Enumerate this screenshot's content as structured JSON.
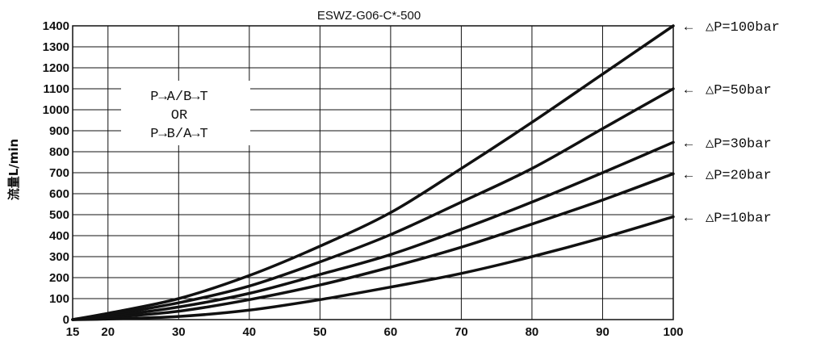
{
  "chart_data": {
    "type": "line",
    "title": "ESWZ-G06-C*-500",
    "xlabel": "",
    "ylabel": "流量L/min",
    "xlim": [
      15,
      100
    ],
    "ylim": [
      0,
      1400
    ],
    "x_ticks": [
      15,
      20,
      30,
      40,
      50,
      60,
      70,
      80,
      90,
      100
    ],
    "y_ticks": [
      0,
      100,
      200,
      300,
      400,
      500,
      600,
      700,
      800,
      900,
      1000,
      1100,
      1200,
      1300,
      1400
    ],
    "grid": true,
    "annotation": [
      "P→A/B→T",
      "OR",
      "P→B/A→T"
    ],
    "series": [
      {
        "name": "△P=100bar",
        "x": [
          15,
          20,
          30,
          40,
          50,
          60,
          70,
          80,
          90,
          100
        ],
        "y": [
          0,
          30,
          100,
          210,
          350,
          510,
          720,
          940,
          1170,
          1400
        ]
      },
      {
        "name": "△P=50bar",
        "x": [
          15,
          20,
          30,
          40,
          50,
          60,
          70,
          80,
          90,
          100
        ],
        "y": [
          0,
          22,
          80,
          160,
          275,
          405,
          560,
          720,
          910,
          1100
        ]
      },
      {
        "name": "△P=30bar",
        "x": [
          15,
          20,
          30,
          40,
          50,
          60,
          70,
          80,
          90,
          100
        ],
        "y": [
          0,
          15,
          60,
          125,
          215,
          310,
          430,
          560,
          700,
          845
        ]
      },
      {
        "name": "△P=20bar",
        "x": [
          15,
          20,
          30,
          40,
          50,
          60,
          70,
          80,
          90,
          100
        ],
        "y": [
          0,
          10,
          40,
          95,
          165,
          250,
          345,
          455,
          570,
          695
        ]
      },
      {
        "name": "△P=10bar",
        "x": [
          15,
          20,
          30,
          40,
          50,
          60,
          70,
          80,
          90,
          100
        ],
        "y": [
          0,
          3,
          15,
          45,
          95,
          155,
          220,
          300,
          390,
          490
        ]
      }
    ]
  }
}
